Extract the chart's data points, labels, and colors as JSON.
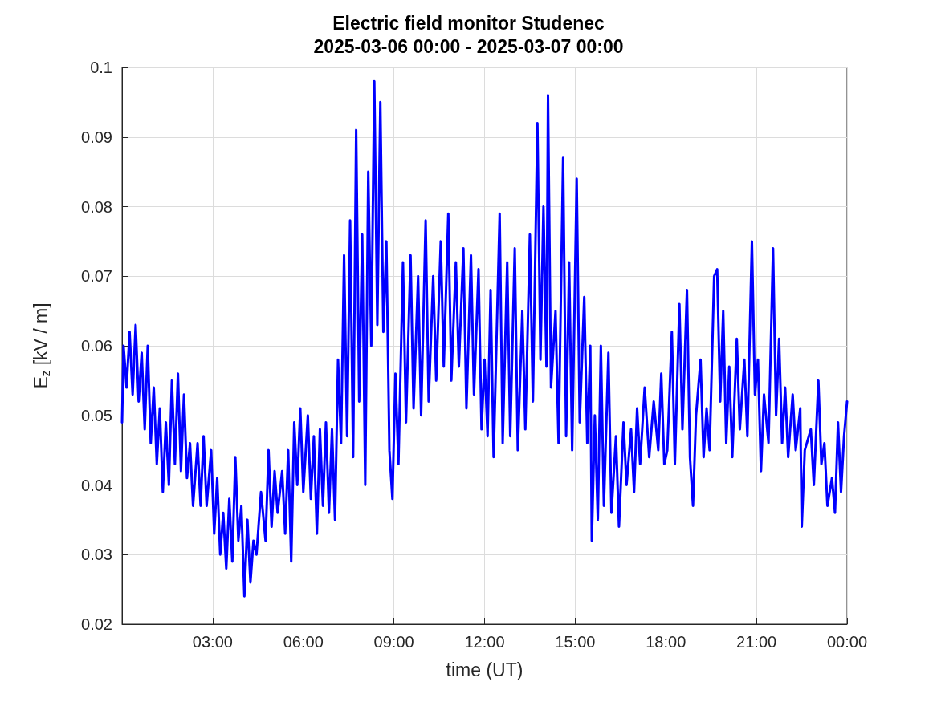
{
  "chart_data": {
    "type": "line",
    "title": "Electric field monitor Studenec",
    "subtitle": "2025-03-06 00:00 - 2025-03-07 00:00",
    "xlabel": "time (UT)",
    "ylabel": "E$_{z}$ [kV / m]",
    "xlim": [
      0,
      24
    ],
    "xticks": [
      {
        "value": 3,
        "label": "03:00"
      },
      {
        "value": 6,
        "label": "06:00"
      },
      {
        "value": 9,
        "label": "09:00"
      },
      {
        "value": 12,
        "label": "12:00"
      },
      {
        "value": 15,
        "label": "15:00"
      },
      {
        "value": 18,
        "label": "18:00"
      },
      {
        "value": 21,
        "label": "21:00"
      },
      {
        "value": 24,
        "label": "00:00"
      }
    ],
    "ylim": [
      0.02,
      0.1
    ],
    "yticks": [
      0.02,
      0.03,
      0.04,
      0.05,
      0.06,
      0.07,
      0.08,
      0.09,
      0.1
    ],
    "grid": true,
    "marker": "none",
    "line_style": "solid",
    "series": [
      {
        "color": "#0000ff",
        "x": [
          0,
          0.05,
          0.15,
          0.25,
          0.35,
          0.45,
          0.55,
          0.65,
          0.75,
          0.85,
          0.95,
          1.05,
          1.15,
          1.25,
          1.35,
          1.45,
          1.55,
          1.65,
          1.75,
          1.85,
          1.95,
          2.05,
          2.15,
          2.25,
          2.35,
          2.5,
          2.6,
          2.7,
          2.8,
          2.95,
          3.05,
          3.15,
          3.25,
          3.35,
          3.45,
          3.55,
          3.65,
          3.75,
          3.85,
          3.95,
          4.05,
          4.15,
          4.25,
          4.35,
          4.45,
          4.6,
          4.75,
          4.85,
          4.95,
          5.05,
          5.15,
          5.3,
          5.4,
          5.5,
          5.6,
          5.7,
          5.8,
          5.9,
          6,
          6.15,
          6.25,
          6.35,
          6.45,
          6.55,
          6.65,
          6.75,
          6.85,
          6.95,
          7.05,
          7.15,
          7.25,
          7.35,
          7.45,
          7.55,
          7.65,
          7.75,
          7.85,
          7.95,
          8.05,
          8.15,
          8.25,
          8.35,
          8.45,
          8.55,
          8.65,
          8.75,
          8.85,
          8.95,
          9.05,
          9.15,
          9.3,
          9.4,
          9.55,
          9.65,
          9.8,
          9.9,
          10.05,
          10.15,
          10.3,
          10.4,
          10.55,
          10.65,
          10.8,
          10.9,
          11.05,
          11.15,
          11.3,
          11.4,
          11.55,
          11.65,
          11.8,
          11.9,
          12,
          12.1,
          12.2,
          12.3,
          12.5,
          12.6,
          12.75,
          12.85,
          13,
          13.1,
          13.25,
          13.35,
          13.5,
          13.6,
          13.75,
          13.85,
          13.95,
          14.05,
          14.1,
          14.2,
          14.35,
          14.45,
          14.6,
          14.7,
          14.8,
          14.9,
          15.05,
          15.15,
          15.3,
          15.4,
          15.5,
          15.55,
          15.65,
          15.75,
          15.85,
          15.95,
          16.1,
          16.2,
          16.35,
          16.45,
          16.6,
          16.7,
          16.85,
          16.95,
          17.05,
          17.15,
          17.3,
          17.45,
          17.6,
          17.75,
          17.85,
          17.95,
          18.05,
          18.2,
          18.3,
          18.45,
          18.55,
          18.7,
          18.8,
          18.9,
          19,
          19.15,
          19.25,
          19.35,
          19.45,
          19.6,
          19.7,
          19.8,
          19.9,
          20,
          20.1,
          20.2,
          20.35,
          20.45,
          20.6,
          20.7,
          20.85,
          20.95,
          21.05,
          21.15,
          21.25,
          21.4,
          21.55,
          21.65,
          21.75,
          21.85,
          21.95,
          22.05,
          22.2,
          22.3,
          22.45,
          22.5,
          22.6,
          22.8,
          22.9,
          23.05,
          23.15,
          23.25,
          23.35,
          23.5,
          23.6,
          23.7,
          23.8,
          23.9,
          24
        ],
        "values": [
          0.049,
          0.06,
          0.054,
          0.062,
          0.053,
          0.063,
          0.052,
          0.059,
          0.048,
          0.06,
          0.046,
          0.054,
          0.043,
          0.051,
          0.039,
          0.049,
          0.04,
          0.055,
          0.043,
          0.056,
          0.042,
          0.053,
          0.041,
          0.046,
          0.037,
          0.046,
          0.037,
          0.047,
          0.037,
          0.045,
          0.033,
          0.041,
          0.03,
          0.036,
          0.028,
          0.038,
          0.029,
          0.044,
          0.032,
          0.037,
          0.024,
          0.035,
          0.026,
          0.032,
          0.03,
          0.039,
          0.032,
          0.045,
          0.034,
          0.042,
          0.036,
          0.042,
          0.033,
          0.045,
          0.029,
          0.049,
          0.04,
          0.051,
          0.039,
          0.05,
          0.038,
          0.047,
          0.033,
          0.048,
          0.037,
          0.049,
          0.036,
          0.048,
          0.035,
          0.058,
          0.046,
          0.073,
          0.047,
          0.078,
          0.044,
          0.091,
          0.052,
          0.076,
          0.04,
          0.085,
          0.06,
          0.098,
          0.063,
          0.095,
          0.062,
          0.075,
          0.045,
          0.038,
          0.056,
          0.043,
          0.072,
          0.049,
          0.073,
          0.051,
          0.07,
          0.05,
          0.078,
          0.052,
          0.07,
          0.055,
          0.075,
          0.057,
          0.079,
          0.055,
          0.072,
          0.057,
          0.074,
          0.051,
          0.073,
          0.053,
          0.071,
          0.048,
          0.058,
          0.047,
          0.068,
          0.044,
          0.079,
          0.046,
          0.072,
          0.047,
          0.074,
          0.045,
          0.065,
          0.048,
          0.076,
          0.052,
          0.092,
          0.058,
          0.08,
          0.057,
          0.096,
          0.054,
          0.065,
          0.046,
          0.087,
          0.047,
          0.072,
          0.045,
          0.084,
          0.049,
          0.067,
          0.046,
          0.06,
          0.032,
          0.05,
          0.035,
          0.06,
          0.037,
          0.059,
          0.036,
          0.047,
          0.034,
          0.049,
          0.04,
          0.048,
          0.039,
          0.051,
          0.043,
          0.054,
          0.044,
          0.052,
          0.045,
          0.056,
          0.043,
          0.045,
          0.062,
          0.043,
          0.066,
          0.048,
          0.068,
          0.044,
          0.037,
          0.05,
          0.058,
          0.044,
          0.051,
          0.045,
          0.07,
          0.071,
          0.052,
          0.065,
          0.046,
          0.057,
          0.044,
          0.061,
          0.048,
          0.058,
          0.047,
          0.075,
          0.053,
          0.058,
          0.042,
          0.053,
          0.046,
          0.074,
          0.05,
          0.061,
          0.046,
          0.054,
          0.044,
          0.053,
          0.045,
          0.051,
          0.034,
          0.045,
          0.048,
          0.04,
          0.055,
          0.043,
          0.046,
          0.037,
          0.041,
          0.036,
          0.049,
          0.039,
          0.047,
          0.052
        ]
      }
    ]
  }
}
